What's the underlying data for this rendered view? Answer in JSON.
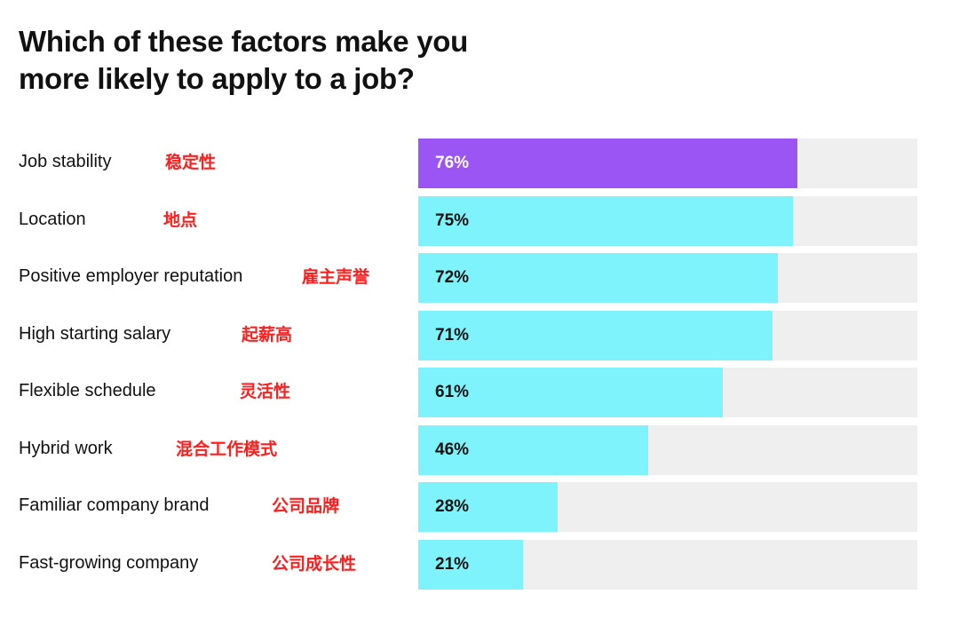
{
  "title_line1": "Which of these factors make you",
  "title_line2": "more likely to apply to a job?",
  "colors": {
    "highlight": "#9b55f5",
    "bar": "#7ef3fb",
    "track": "#efefef",
    "annotation": "#ff1f1f"
  },
  "chart_data": {
    "type": "bar",
    "orientation": "horizontal",
    "xlim": [
      0,
      100
    ],
    "categories": [
      "Job stability",
      "Location",
      "Positive employer reputation",
      "High starting salary",
      "Flexible schedule",
      "Hybrid work",
      "Familiar company brand",
      "Fast-growing company"
    ],
    "annotations_cn": [
      "稳定性",
      "地点",
      "雇主声誉",
      "起薪高",
      "灵活性",
      "混合工作模式",
      "公司品牌",
      "公司成长性"
    ],
    "values": [
      76,
      75,
      72,
      71,
      61,
      46,
      28,
      21
    ],
    "value_labels": [
      "76%",
      "75%",
      "72%",
      "71%",
      "61%",
      "46%",
      "28%",
      "21%"
    ],
    "highlighted": [
      0
    ]
  }
}
